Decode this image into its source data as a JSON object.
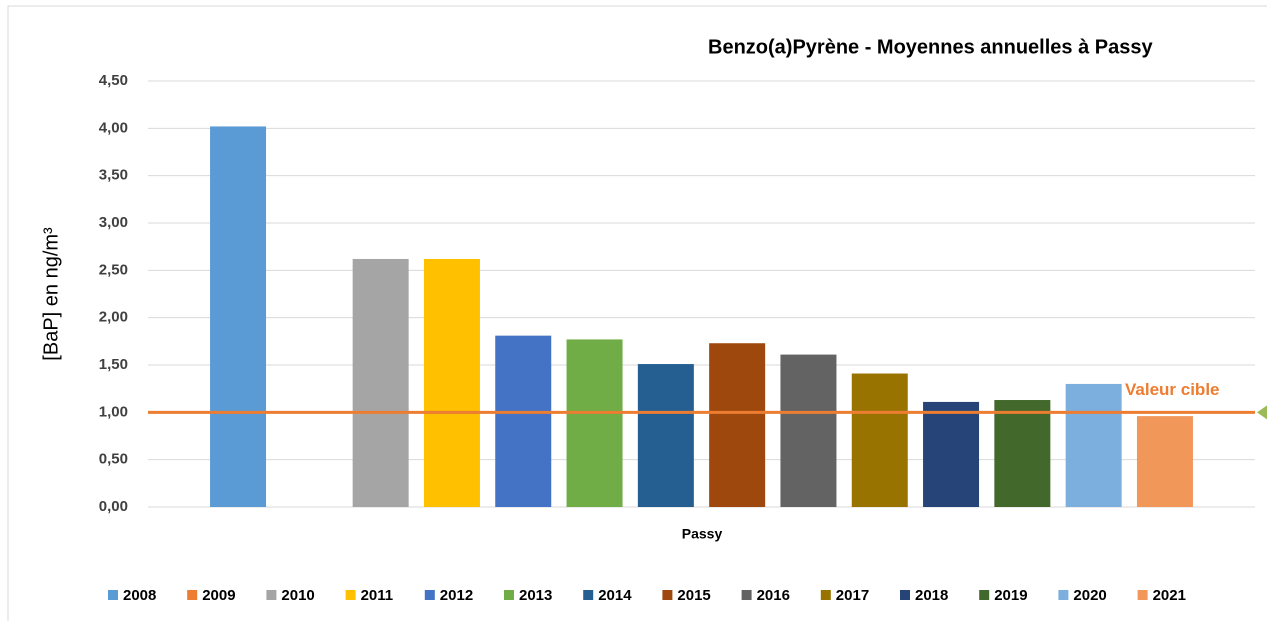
{
  "chart_data": {
    "type": "bar",
    "title": "Benzo(a)Pyrène - Moyennes annuelles à Passy",
    "x_label": "Passy",
    "y_label": "[BaP] en ng/m³",
    "categories": [
      "Passy"
    ],
    "series": [
      {
        "name": "2008",
        "color": "#5b9bd5",
        "values": [
          4.02
        ]
      },
      {
        "name": "2009",
        "color": "#ed7d31",
        "values": [
          null
        ]
      },
      {
        "name": "2010",
        "color": "#a5a5a5",
        "values": [
          2.62
        ]
      },
      {
        "name": "2011",
        "color": "#ffc000",
        "values": [
          2.62
        ]
      },
      {
        "name": "2012",
        "color": "#4472c4",
        "values": [
          1.81
        ]
      },
      {
        "name": "2013",
        "color": "#70ad47",
        "values": [
          1.77
        ]
      },
      {
        "name": "2014",
        "color": "#255e91",
        "values": [
          1.51
        ]
      },
      {
        "name": "2015",
        "color": "#9e480e",
        "values": [
          1.73
        ]
      },
      {
        "name": "2016",
        "color": "#636363",
        "values": [
          1.61
        ]
      },
      {
        "name": "2017",
        "color": "#997300",
        "values": [
          1.41
        ]
      },
      {
        "name": "2018",
        "color": "#264478",
        "values": [
          1.11
        ]
      },
      {
        "name": "2019",
        "color": "#43682b",
        "values": [
          1.13
        ]
      },
      {
        "name": "2020",
        "color": "#7cafdd",
        "values": [
          1.3
        ]
      },
      {
        "name": "2021",
        "color": "#f1975a",
        "values": [
          0.96
        ]
      }
    ],
    "ylim": [
      0,
      4.5
    ],
    "yticks": [
      {
        "value": 0,
        "label": "0,00"
      },
      {
        "value": 0.5,
        "label": "0,50"
      },
      {
        "value": 1,
        "label": "1,00"
      },
      {
        "value": 1.5,
        "label": "1,50"
      },
      {
        "value": 2,
        "label": "2,00"
      },
      {
        "value": 2.5,
        "label": "2,50"
      },
      {
        "value": 3,
        "label": "3,00"
      },
      {
        "value": 3.5,
        "label": "3,50"
      },
      {
        "value": 4,
        "label": "4,00"
      },
      {
        "value": 4.5,
        "label": "4,50"
      }
    ],
    "grid": true,
    "legend": "bottom",
    "reference_line": {
      "value": 1,
      "label": "Valeur cible",
      "color": "#ed7d31"
    }
  }
}
